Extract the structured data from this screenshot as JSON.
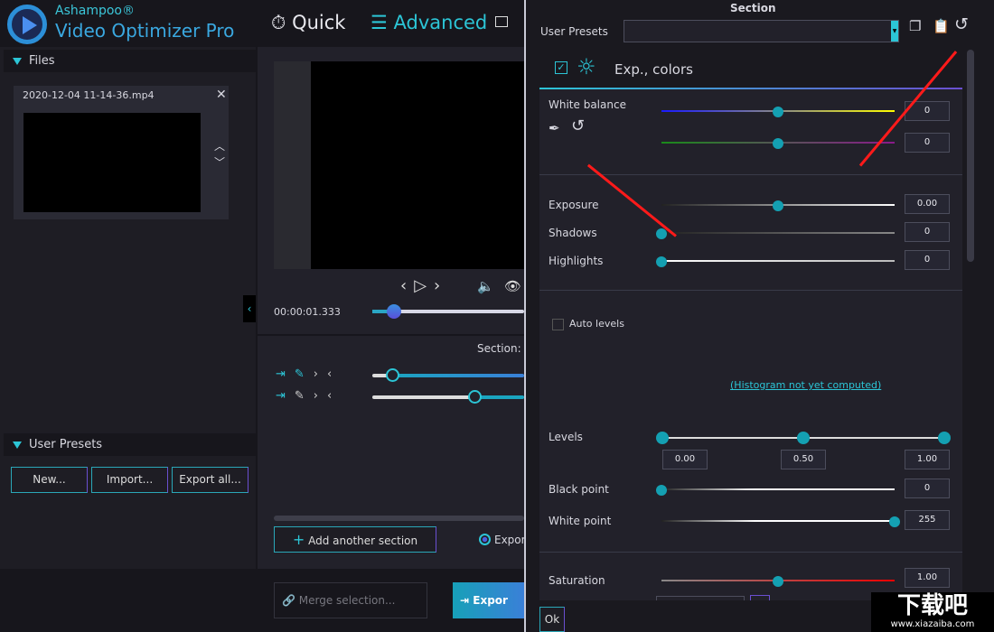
{
  "app": {
    "brand_small": "Ashampoo®",
    "brand_title": "Video Optimizer Pro",
    "nav_quick": "Quick",
    "nav_advanced": "Advanced"
  },
  "files": {
    "header": "Files",
    "file_name": "2020-12-04 11-14-36.mp4"
  },
  "presets_panel": {
    "header": "User Presets",
    "new": "New...",
    "import": "Import...",
    "export_all": "Export all..."
  },
  "player": {
    "time": "00:00:01.333",
    "position": 0.08,
    "section_label": "Section:"
  },
  "sections": {
    "add": "Add another section",
    "export_radio": "Expor",
    "merge": "Merge selection...",
    "export": "Expor"
  },
  "panel": {
    "title": "Section",
    "user_presets_label": "User Presets",
    "user_presets_value": "",
    "group_title": "Exp., colors",
    "group_enabled": true,
    "white_balance": "White balance",
    "wb1": "0",
    "wb2": "0",
    "exposure": "Exposure",
    "exposure_value": "0.00",
    "shadows": "Shadows",
    "shadows_value": "0",
    "highlights": "Highlights",
    "highlights_value": "0",
    "auto_levels": "Auto levels",
    "auto_levels_checked": false,
    "histogram": "(Histogram not yet computed)",
    "levels": "Levels",
    "levels_low": "0.00",
    "levels_mid": "0.50",
    "levels_high": "1.00",
    "black_point": "Black point",
    "black_point_value": "0",
    "white_point": "White point",
    "white_point_value": "255",
    "saturation": "Saturation",
    "saturation_value": "1.00",
    "ok": "Ok"
  },
  "watermark": {
    "text": "下载吧",
    "url": "www.xiazaiba.com"
  },
  "colors": {
    "accent": "#2cc5d6",
    "knob": "#14a0b2",
    "annotation": "#ff1a1a"
  }
}
